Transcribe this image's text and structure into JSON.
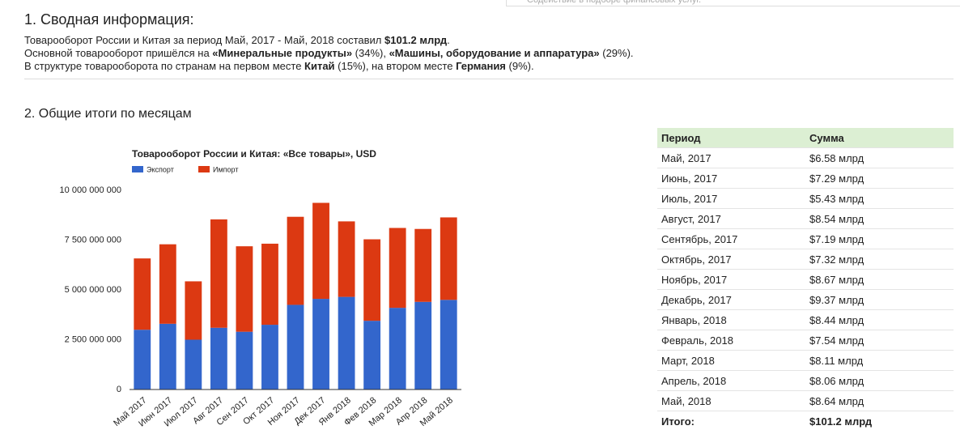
{
  "top_note": "Содействие в подборе финансовых услуг.",
  "section1": {
    "heading": "1. Сводная информация:",
    "lines": [
      [
        "Товарооборот России и Китая за период Май, 2017 - Май, 2018 составил ",
        "$101.2 млрд",
        "."
      ],
      [
        "Основной товарооборот пришёлся на ",
        "«Минеральные продукты»",
        " (34%), ",
        "«Машины, оборудование и аппаратура»",
        " (29%)."
      ],
      [
        "В структуре товарооборота по странам на первом месте ",
        "Китай",
        " (15%), на втором месте ",
        "Германия",
        " (9%)."
      ]
    ]
  },
  "section2": {
    "heading": "2. Общие итоги по месяцам"
  },
  "chart_data": {
    "type": "stacked_bar",
    "title": "Товарооборот России и Китая: «Все товары», USD",
    "categories": [
      "Май 2017",
      "Июн 2017",
      "Июл 2017",
      "Авг 2017",
      "Сен 2017",
      "Окт 2017",
      "Ноя 2017",
      "Дек 2017",
      "Янв 2018",
      "Фев 2018",
      "Мар 2018",
      "Апр 2018",
      "Май 2018"
    ],
    "series": [
      {
        "name": "Экспорт",
        "color": "#3366cc",
        "values": [
          3000000000,
          3300000000,
          2500000000,
          3100000000,
          2900000000,
          3250000000,
          4250000000,
          4550000000,
          4650000000,
          3450000000,
          4100000000,
          4400000000,
          4500000000
        ]
      },
      {
        "name": "Импорт",
        "color": "#dc3912",
        "values": [
          3580000000,
          3990000000,
          2930000000,
          5440000000,
          4290000000,
          4070000000,
          4420000000,
          4820000000,
          3790000000,
          4090000000,
          4010000000,
          3660000000,
          4140000000
        ]
      }
    ],
    "ylim": [
      0,
      10000000000
    ],
    "yticks": [
      0,
      {
        "value": 2500000000,
        "label": "2 500 000 000"
      },
      {
        "value": 5000000000,
        "label": "5 000 000 000"
      },
      {
        "value": 7500000000,
        "label": "7 500 000 000"
      },
      {
        "value": 10000000000,
        "label": "10 000 000 000"
      }
    ],
    "legend": "top-left"
  },
  "table": {
    "header": [
      "Период",
      "Сумма"
    ],
    "rows": [
      [
        "Май, 2017",
        "$6.58 млрд"
      ],
      [
        "Июнь, 2017",
        "$7.29 млрд"
      ],
      [
        "Июль, 2017",
        "$5.43 млрд"
      ],
      [
        "Август, 2017",
        "$8.54 млрд"
      ],
      [
        "Сентябрь, 2017",
        "$7.19 млрд"
      ],
      [
        "Октябрь, 2017",
        "$7.32 млрд"
      ],
      [
        "Ноябрь, 2017",
        "$8.67 млрд"
      ],
      [
        "Декабрь, 2017",
        "$9.37 млрд"
      ],
      [
        "Январь, 2018",
        "$8.44 млрд"
      ],
      [
        "Февраль, 2018",
        "$7.54 млрд"
      ],
      [
        "Март, 2018",
        "$8.11 млрд"
      ],
      [
        "Апрель, 2018",
        "$8.06 млрд"
      ],
      [
        "Май, 2018",
        "$8.64 млрд"
      ]
    ],
    "total": [
      "Итого:",
      "$101.2 млрд"
    ]
  }
}
